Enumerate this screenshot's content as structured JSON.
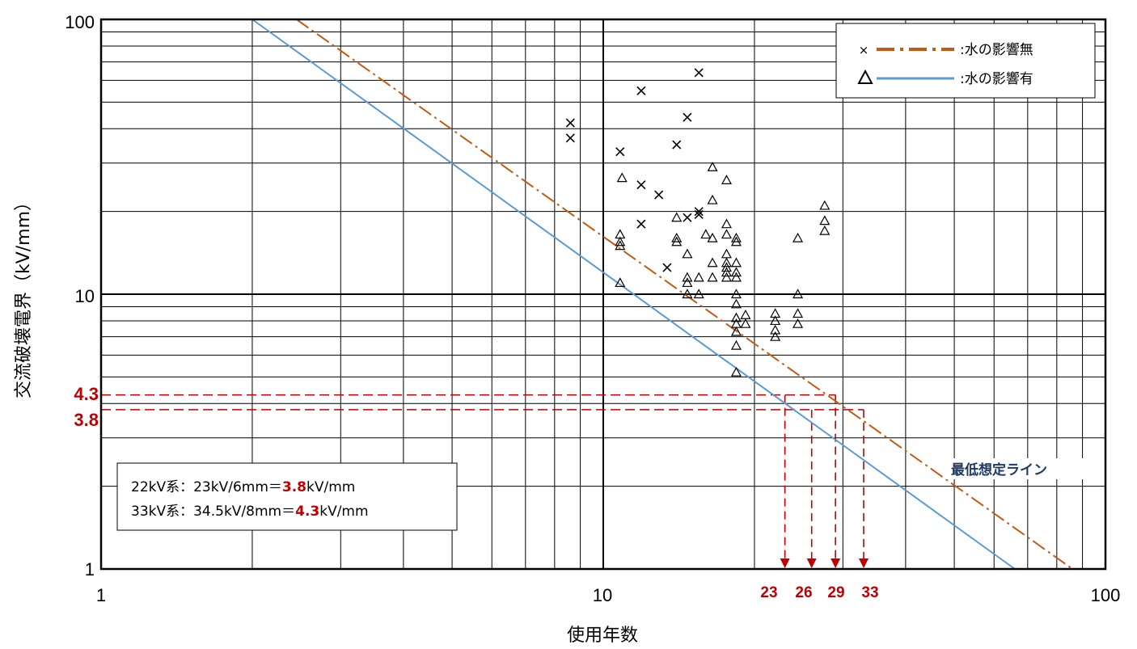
{
  "chart_data": {
    "type": "scatter",
    "title": "",
    "xlabel": "使用年数",
    "ylabel": "交流破壊電界（kV/mm）",
    "xscale": "log",
    "yscale": "log",
    "xlim": [
      1,
      100
    ],
    "ylim": [
      1,
      100
    ],
    "x_ticks": [
      "1",
      "10",
      "100"
    ],
    "y_ticks": [
      "1",
      "10",
      "100"
    ],
    "grid": true,
    "legend_position": "top-right",
    "series": [
      {
        "name": ":水の影響無",
        "marker": "×",
        "marker_color": "#000000",
        "line_color": "#c55a11",
        "line_style": "dash-dot",
        "line": [
          [
            2.45,
            100
          ],
          [
            86,
            1
          ]
        ],
        "points": [
          [
            8.6,
            42
          ],
          [
            8.6,
            37
          ],
          [
            10.8,
            33
          ],
          [
            11.9,
            55
          ],
          [
            11.9,
            25
          ],
          [
            11.9,
            18
          ],
          [
            12.9,
            23
          ],
          [
            13.4,
            12.5
          ],
          [
            14.0,
            35
          ],
          [
            14.7,
            44
          ],
          [
            14.7,
            19
          ],
          [
            15.5,
            64
          ],
          [
            15.5,
            20
          ],
          [
            15.5,
            19.5
          ]
        ]
      },
      {
        "name": ":水の影響有",
        "marker": "△",
        "marker_color": "#000000",
        "line_color": "#5b9bd5",
        "line_style": "solid",
        "line": [
          [
            2.0,
            100
          ],
          [
            66,
            1
          ]
        ],
        "points": [
          [
            10.9,
            26.5
          ],
          [
            10.8,
            16.5
          ],
          [
            10.8,
            15.5
          ],
          [
            10.8,
            15
          ],
          [
            10.8,
            11
          ],
          [
            14.0,
            19
          ],
          [
            14.0,
            16
          ],
          [
            14.0,
            15.5
          ],
          [
            14.7,
            14
          ],
          [
            14.7,
            11.5
          ],
          [
            14.7,
            11
          ],
          [
            14.7,
            10
          ],
          [
            15.5,
            10
          ],
          [
            15.5,
            11.5
          ],
          [
            16.0,
            16.5
          ],
          [
            16.5,
            29
          ],
          [
            16.5,
            22
          ],
          [
            16.5,
            16
          ],
          [
            16.5,
            13
          ],
          [
            16.5,
            11.5
          ],
          [
            17.6,
            26
          ],
          [
            17.6,
            18
          ],
          [
            17.6,
            16.5
          ],
          [
            17.6,
            14
          ],
          [
            17.6,
            13
          ],
          [
            17.6,
            12.5
          ],
          [
            17.6,
            12
          ],
          [
            17.6,
            11.5
          ],
          [
            18.4,
            16
          ],
          [
            18.4,
            15.5
          ],
          [
            18.4,
            13
          ],
          [
            18.4,
            12
          ],
          [
            18.4,
            11.5
          ],
          [
            18.4,
            10
          ],
          [
            18.4,
            9.2
          ],
          [
            18.4,
            8.2
          ],
          [
            18.4,
            7.8
          ],
          [
            18.4,
            7.3
          ],
          [
            18.4,
            6.5
          ],
          [
            18.4,
            5.2
          ],
          [
            19.2,
            8.4
          ],
          [
            19.2,
            7.8
          ],
          [
            22.0,
            8.5
          ],
          [
            22.0,
            8.0
          ],
          [
            22.0,
            7.4
          ],
          [
            22.0,
            7.0
          ],
          [
            24.4,
            16
          ],
          [
            24.4,
            10
          ],
          [
            24.4,
            8.5
          ],
          [
            24.4,
            7.8
          ],
          [
            27.6,
            21
          ],
          [
            27.6,
            18.5
          ],
          [
            27.6,
            17
          ]
        ]
      }
    ],
    "reference_lines": [
      {
        "label": "4.3",
        "y": 4.3,
        "x_end": 29,
        "color": "#c00000"
      },
      {
        "label": "3.8",
        "y": 3.8,
        "x_end": 33,
        "color": "#c00000"
      }
    ],
    "drop_arrows": [
      {
        "label": "23",
        "x": 23,
        "from_y": 4.3
      },
      {
        "label": "26",
        "x": 26,
        "from_y": 3.8
      },
      {
        "label": "29",
        "x": 29,
        "from_y": 4.3
      },
      {
        "label": "33",
        "x": 33,
        "from_y": 3.8
      }
    ],
    "annotations": {
      "line_label": "最低想定ライン",
      "line_label_color": "#1f3864",
      "note_lines": [
        {
          "prefix": "22kV系：23kV/6mm＝",
          "value": "3.8",
          "suffix": "kV/mm"
        },
        {
          "prefix": "33kV系：34.5kV/8mm＝",
          "value": "4.3",
          "suffix": "kV/mm"
        }
      ]
    },
    "colors": {
      "accent_red": "#c00000",
      "grid": "#000000"
    }
  }
}
